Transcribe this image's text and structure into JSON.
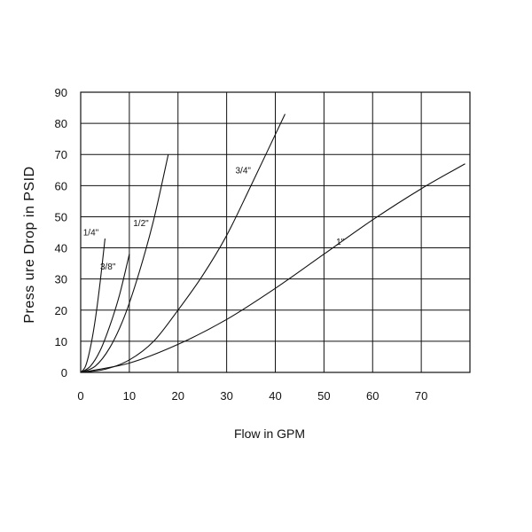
{
  "chart_data": {
    "type": "line",
    "title": "",
    "xlabel": "Flow in GPM",
    "ylabel": "Press ure Drop in PSID",
    "xlim": [
      0,
      80
    ],
    "ylim": [
      0,
      90
    ],
    "xticks": [
      0,
      10,
      20,
      30,
      40,
      50,
      60,
      70
    ],
    "yticks": [
      0,
      10,
      20,
      30,
      40,
      50,
      60,
      70,
      80,
      90
    ],
    "grid": true,
    "legend": "none",
    "line_color": "#111111",
    "series": [
      {
        "name": "1/4\"",
        "x": [
          0,
          1,
          2,
          3,
          4,
          5
        ],
        "y": [
          0,
          2,
          8,
          17,
          29,
          43
        ]
      },
      {
        "name": "3/8\"",
        "x": [
          0,
          2,
          4,
          6,
          8,
          10
        ],
        "y": [
          0,
          2,
          7,
          15,
          25,
          38
        ]
      },
      {
        "name": "1/2\"",
        "x": [
          0,
          3,
          6,
          9,
          12,
          15,
          18
        ],
        "y": [
          0,
          2,
          8,
          18,
          32,
          49,
          70
        ]
      },
      {
        "name": "3/4\"",
        "x": [
          0,
          5,
          10,
          15,
          20,
          25,
          30,
          35,
          42
        ],
        "y": [
          0,
          1,
          4,
          10,
          20,
          31,
          44,
          60,
          83
        ]
      },
      {
        "name": "1\"",
        "x": [
          0,
          10,
          20,
          30,
          40,
          50,
          60,
          70,
          79
        ],
        "y": [
          0,
          3,
          9,
          17,
          27,
          38,
          49,
          59,
          67
        ]
      }
    ],
    "curve_label_anchor": [
      {
        "x": 0.5,
        "y": 44
      },
      {
        "x": 4.0,
        "y": 33
      },
      {
        "x": 10.8,
        "y": 47
      },
      {
        "x": 31.8,
        "y": 64
      },
      {
        "x": 52.5,
        "y": 41
      }
    ]
  }
}
